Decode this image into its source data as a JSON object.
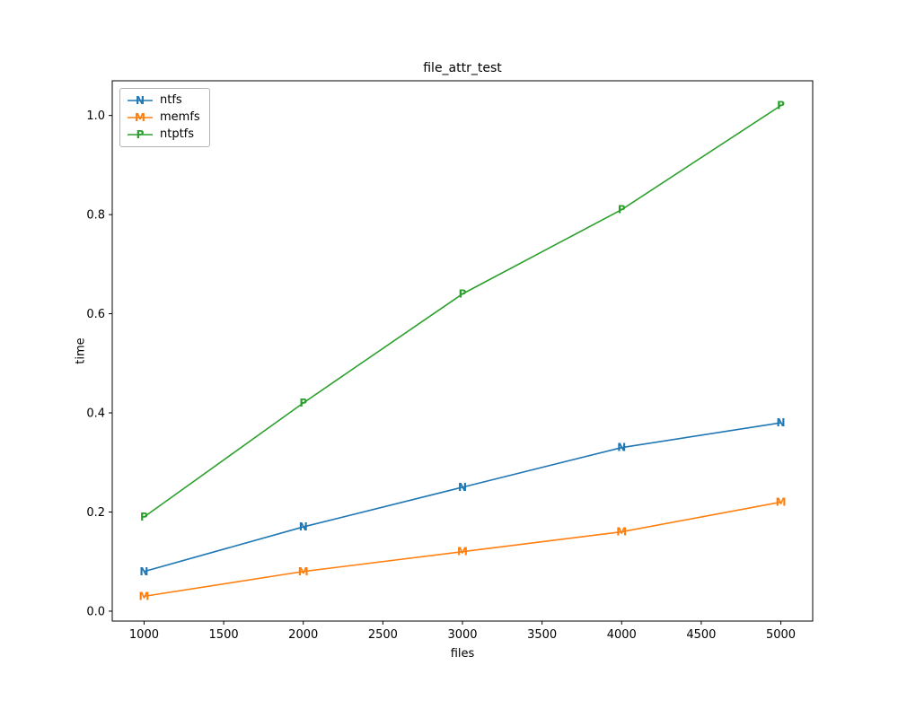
{
  "chart_data": {
    "type": "line",
    "title": "file_attr_test",
    "xlabel": "files",
    "ylabel": "time",
    "x": [
      1000,
      2000,
      3000,
      4000,
      5000
    ],
    "series": [
      {
        "name": "ntfs",
        "marker": "N",
        "color": "#1f77b4",
        "values": [
          0.08,
          0.17,
          0.25,
          0.33,
          0.38
        ]
      },
      {
        "name": "memfs",
        "marker": "M",
        "color": "#ff7f0e",
        "values": [
          0.03,
          0.08,
          0.12,
          0.16,
          0.22
        ]
      },
      {
        "name": "ntptfs",
        "marker": "P",
        "color": "#2ca02c",
        "values": [
          0.19,
          0.42,
          0.64,
          0.81,
          1.02
        ]
      }
    ],
    "xticks": [
      1000,
      1500,
      2000,
      2500,
      3000,
      3500,
      4000,
      4500,
      5000
    ],
    "yticks": [
      0.0,
      0.2,
      0.4,
      0.6,
      0.8,
      1.0
    ],
    "xlim": [
      800,
      5200
    ],
    "ylim": [
      -0.02,
      1.07
    ],
    "legend_position": "upper left",
    "grid": false,
    "axis_color": "#000000",
    "background_color": "#ffffff"
  }
}
